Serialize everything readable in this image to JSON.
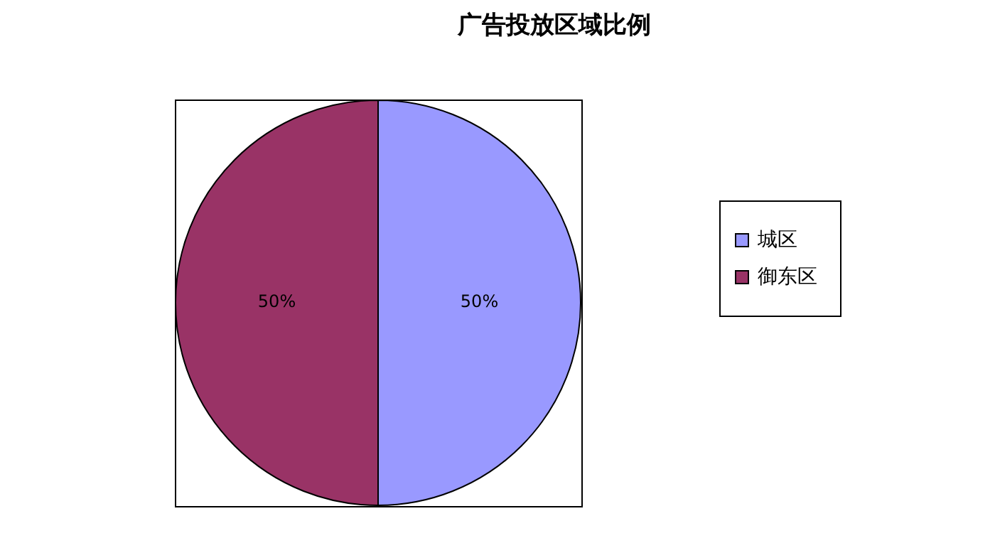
{
  "chart_data": {
    "type": "pie",
    "title": "广告投放区域比例",
    "categories": [
      "城区",
      "御东区"
    ],
    "values": [
      50,
      50
    ],
    "colors": [
      "#9999ff",
      "#993366"
    ],
    "value_labels": [
      "50%",
      "50%"
    ],
    "legend": "right"
  }
}
